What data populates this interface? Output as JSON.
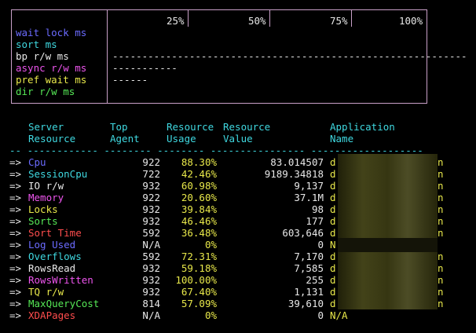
{
  "gauge": {
    "scale_labels": [
      "25%",
      "50%",
      "75%",
      "100%"
    ],
    "metrics": [
      {
        "label": "wait lock ms",
        "color": "#6b6bff",
        "bar": ""
      },
      {
        "label": "sort ms",
        "color": "#3fd8e0",
        "bar": ""
      },
      {
        "label": "bp r/w ms",
        "color": "#e8e8e8",
        "bar": "------------------------------------------------------------"
      },
      {
        "label": "async r/w ms",
        "color": "#ee55ee",
        "bar": "-----------"
      },
      {
        "label": "pref wait ms",
        "color": "#e8e84a",
        "bar": "------"
      },
      {
        "label": "dir r/w ms",
        "color": "#56e856",
        "bar": ""
      }
    ]
  },
  "table": {
    "headers": {
      "resource_1": "Server",
      "resource_2": "Resource",
      "agent_1": "Top",
      "agent_2": "Agent",
      "usage_1": "Resource",
      "usage_2": "Usage",
      "value_1": "Resource",
      "value_2": "Value",
      "app_1": "Application",
      "app_2": "Name"
    },
    "separator": "-- ------------ -------- -------- ---------------- -------------------",
    "rows": [
      {
        "arrow": "=>",
        "resource": "Cpu",
        "color": "#6b6bff",
        "agent": "922",
        "usage": "88.30%",
        "value": "83.014507",
        "app_start": "d",
        "app_end": "n"
      },
      {
        "arrow": "=>",
        "resource": "SessionCpu",
        "color": "#3fd8e0",
        "agent": "722",
        "usage": "42.46%",
        "value": "9189.34818",
        "app_start": "d",
        "app_end": "n"
      },
      {
        "arrow": "=>",
        "resource": "IO r/w",
        "color": "#e8e8e8",
        "agent": "932",
        "usage": "60.98%",
        "value": "9,137",
        "app_start": "d",
        "app_end": "n"
      },
      {
        "arrow": "=>",
        "resource": "Memory",
        "color": "#ee55ee",
        "agent": "922",
        "usage": "20.60%",
        "value": "37.1M",
        "app_start": "d",
        "app_end": "n"
      },
      {
        "arrow": "=>",
        "resource": "Locks",
        "color": "#e8e84a",
        "agent": "932",
        "usage": "39.84%",
        "value": "98",
        "app_start": "d",
        "app_end": "n"
      },
      {
        "arrow": "=>",
        "resource": "Sorts",
        "color": "#56e856",
        "agent": "932",
        "usage": "46.46%",
        "value": "177",
        "app_start": "d",
        "app_end": "n"
      },
      {
        "arrow": "=>",
        "resource": "Sort Time",
        "color": "#ff4d4d",
        "agent": "592",
        "usage": "36.48%",
        "value": "603,646",
        "app_start": "d",
        "app_end": "n"
      },
      {
        "arrow": "=>",
        "resource": "Log Used",
        "color": "#6b6bff",
        "agent": "N/A",
        "usage": "0%",
        "value": "0",
        "app_start": "N",
        "app_end": ""
      },
      {
        "arrow": "=>",
        "resource": "Overflows",
        "color": "#3fd8e0",
        "agent": "592",
        "usage": "72.31%",
        "value": "7,170",
        "app_start": "d",
        "app_end": "n"
      },
      {
        "arrow": "=>",
        "resource": "RowsRead",
        "color": "#e8e8e8",
        "agent": "932",
        "usage": "59.18%",
        "value": "7,585",
        "app_start": "d",
        "app_end": "n"
      },
      {
        "arrow": "=>",
        "resource": "RowsWritten",
        "color": "#ee55ee",
        "agent": "932",
        "usage": "100.00%",
        "value": "255",
        "app_start": "d",
        "app_end": "n"
      },
      {
        "arrow": "=>",
        "resource": "TQ r/w",
        "color": "#e8e84a",
        "agent": "932",
        "usage": "67.40%",
        "value": "1,131",
        "app_start": "d",
        "app_end": "n"
      },
      {
        "arrow": "=>",
        "resource": "MaxQueryCost",
        "color": "#56e856",
        "agent": "814",
        "usage": "57.09%",
        "value": "39,610",
        "app_start": "d",
        "app_end": "n"
      },
      {
        "arrow": "=>",
        "resource": "XDAPages",
        "color": "#ff4d4d",
        "agent": "N/A",
        "usage": "0%",
        "value": "0",
        "app_start": "N/A",
        "app_end": ""
      }
    ]
  }
}
